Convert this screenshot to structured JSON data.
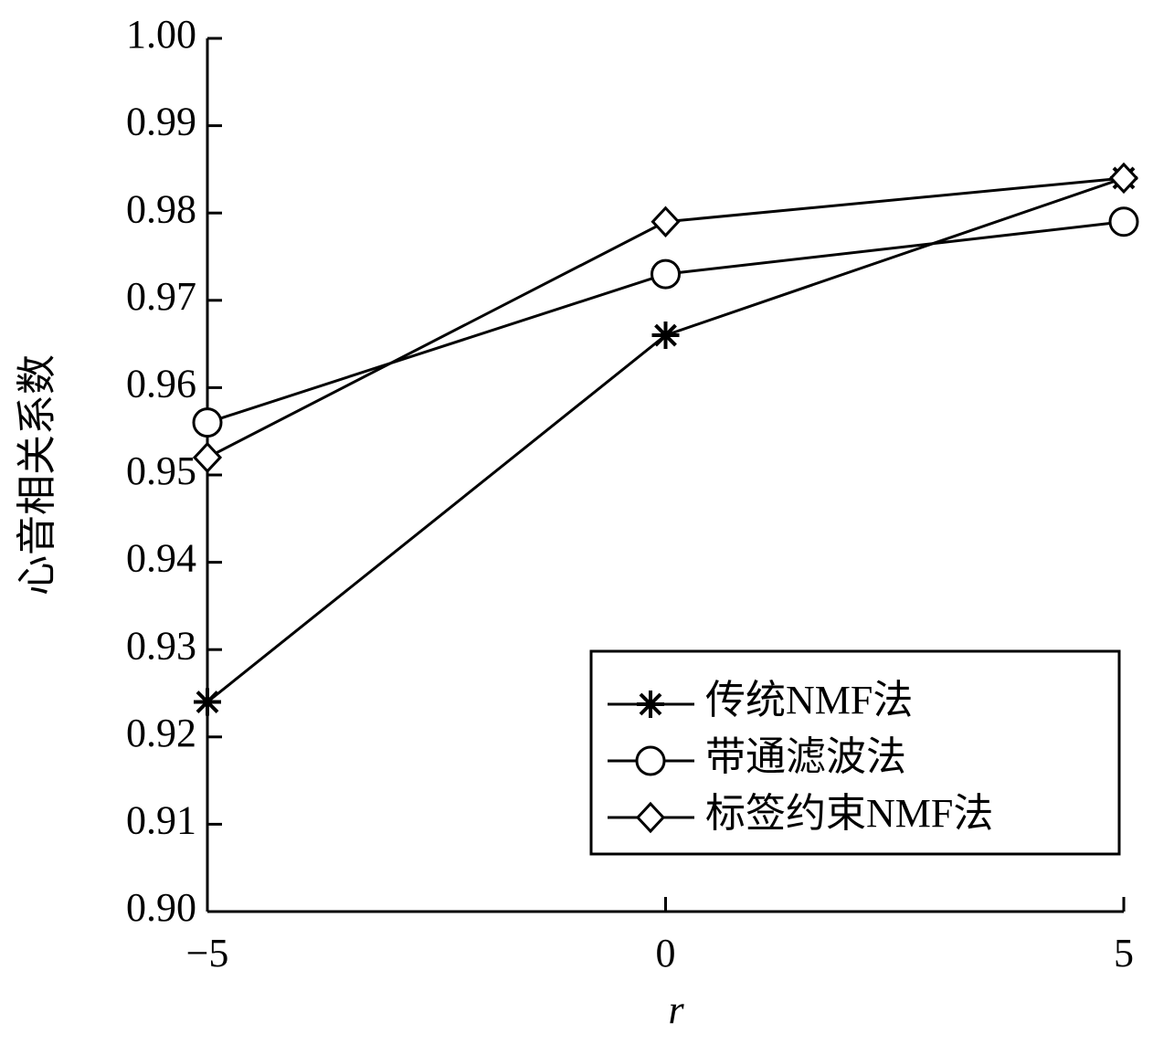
{
  "chart_data": {
    "type": "line",
    "x_label": "r",
    "y_label": "心音相关系数",
    "xlim": [
      -5,
      5
    ],
    "xticks": [
      {
        "value": -5,
        "label": "−5"
      },
      0,
      5
    ],
    "ylim": [
      0.9,
      1.0
    ],
    "yticks": [
      {
        "value": 0.9,
        "label": "0.90"
      },
      0.91,
      0.92,
      0.93,
      0.94,
      0.95,
      0.96,
      0.97,
      0.98,
      0.99,
      {
        "value": 1.0,
        "label": "1.00"
      }
    ],
    "x": [
      -5,
      0,
      5
    ],
    "legend": "lower right",
    "series": [
      {
        "name": "传统NMF法",
        "color": "#000000",
        "marker": "star",
        "values": [
          0.924,
          0.966,
          0.984
        ]
      },
      {
        "name": "带通滤波法",
        "color": "#000000",
        "marker": "circle",
        "values": [
          0.956,
          0.973,
          0.979
        ]
      },
      {
        "name": "标签约束NMF法",
        "color": "#000000",
        "marker": "diamond",
        "values": [
          0.952,
          0.979,
          0.984
        ]
      }
    ]
  }
}
